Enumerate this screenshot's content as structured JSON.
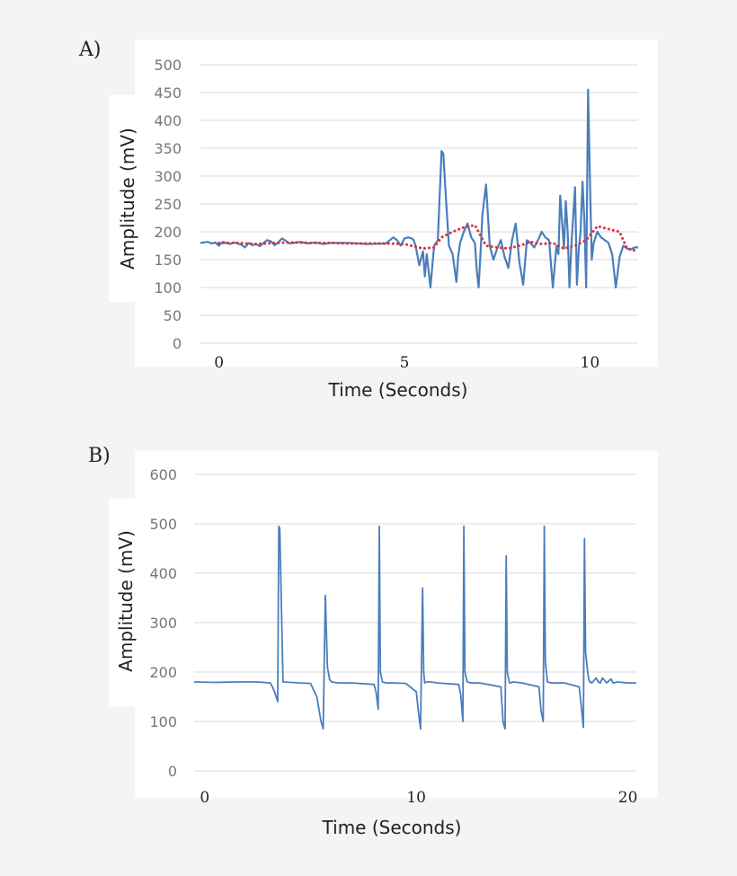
{
  "chart_data": [
    {
      "type": "line",
      "panel_label": "A)",
      "xlabel": "Time (Seconds)",
      "ylabel": "Amplitude (mV)",
      "ylim": [
        0,
        500
      ],
      "yticks": [
        0,
        50,
        100,
        150,
        200,
        250,
        300,
        350,
        400,
        450,
        500
      ],
      "xlim": [
        -0.5,
        11.3
      ],
      "xticks": [
        0,
        5,
        10
      ],
      "grid": true,
      "colors": {
        "raw": "#4a7ebb",
        "filtered": "#d9333f"
      },
      "series": [
        {
          "style": "solid",
          "x": [
            -0.5,
            -0.3,
            -0.2,
            -0.1,
            0.0,
            0.1,
            0.2,
            0.3,
            0.4,
            0.5,
            0.6,
            0.7,
            0.8,
            0.9,
            1.0,
            1.1,
            1.2,
            1.3,
            1.4,
            1.5,
            1.6,
            1.7,
            1.8,
            1.9,
            2.0,
            2.2,
            2.4,
            2.6,
            2.8,
            3.0,
            3.5,
            4.0,
            4.5,
            4.7,
            4.8,
            4.9,
            5.0,
            5.1,
            5.2,
            5.25,
            5.3,
            5.4,
            5.5,
            5.55,
            5.6,
            5.7,
            5.8,
            5.9,
            6.0,
            6.05,
            6.1,
            6.2,
            6.3,
            6.4,
            6.45,
            6.5,
            6.6,
            6.7,
            6.8,
            6.9,
            6.95,
            7.0,
            7.05,
            7.1,
            7.2,
            7.3,
            7.4,
            7.5,
            7.6,
            7.7,
            7.8,
            7.9,
            8.0,
            8.1,
            8.2,
            8.3,
            8.4,
            8.5,
            8.6,
            8.7,
            8.8,
            8.9,
            9.0,
            9.1,
            9.15,
            9.2,
            9.3,
            9.35,
            9.4,
            9.45,
            9.5,
            9.6,
            9.65,
            9.7,
            9.75,
            9.8,
            9.85,
            9.9,
            9.95,
            10.0,
            10.05,
            10.1,
            10.2,
            10.3,
            10.4,
            10.5,
            10.6,
            10.7,
            10.8,
            10.9,
            11.0,
            11.1,
            11.2,
            11.3
          ],
          "y": [
            180,
            182,
            179,
            181,
            175,
            182,
            180,
            178,
            181,
            179,
            177,
            172,
            180,
            176,
            178,
            174,
            180,
            185,
            183,
            176,
            181,
            188,
            184,
            179,
            180,
            182,
            179,
            181,
            178,
            180,
            180,
            178,
            179,
            190,
            185,
            175,
            188,
            190,
            188,
            185,
            175,
            140,
            165,
            120,
            160,
            100,
            175,
            185,
            345,
            340,
            280,
            175,
            160,
            110,
            155,
            180,
            200,
            215,
            190,
            180,
            130,
            100,
            160,
            230,
            285,
            175,
            150,
            170,
            185,
            155,
            135,
            185,
            215,
            145,
            105,
            185,
            180,
            172,
            185,
            200,
            190,
            185,
            100,
            175,
            160,
            265,
            170,
            255,
            200,
            100,
            175,
            280,
            105,
            170,
            200,
            290,
            220,
            100,
            455,
            300,
            150,
            180,
            200,
            190,
            185,
            180,
            160,
            100,
            155,
            175,
            170,
            168,
            172,
            172
          ]
        },
        {
          "style": "dotted",
          "x": [
            0,
            0.5,
            1.0,
            1.5,
            2.0,
            2.5,
            3.0,
            3.5,
            4.0,
            4.5,
            5.0,
            5.5,
            5.8,
            6.0,
            6.3,
            6.6,
            6.9,
            7.2,
            7.5,
            7.8,
            8.1,
            8.4,
            8.7,
            9.0,
            9.3,
            9.6,
            9.9,
            10.2,
            10.5,
            10.8,
            11.0,
            11.3
          ],
          "y": [
            180,
            180,
            178,
            180,
            181,
            180,
            180,
            179,
            179,
            179,
            178,
            170,
            172,
            190,
            200,
            208,
            212,
            175,
            172,
            170,
            175,
            182,
            178,
            180,
            170,
            175,
            185,
            210,
            205,
            200,
            170,
            165
          ]
        }
      ]
    },
    {
      "type": "line",
      "panel_label": "B)",
      "xlabel": "Time (Seconds)",
      "ylabel": "Amplitude (mV)",
      "ylim": [
        0,
        600
      ],
      "yticks": [
        0,
        100,
        200,
        300,
        400,
        500,
        600
      ],
      "xlim": [
        -0.5,
        20.4
      ],
      "xticks": [
        0,
        10,
        20
      ],
      "grid": true,
      "colors": {
        "raw": "#4a7ebb"
      },
      "series": [
        {
          "style": "solid",
          "x": [
            -0.5,
            0.5,
            1.5,
            2.5,
            3.1,
            3.2,
            3.3,
            3.45,
            3.5,
            3.55,
            3.7,
            4.5,
            5.0,
            5.3,
            5.5,
            5.6,
            5.7,
            5.8,
            5.9,
            6.0,
            6.3,
            7.0,
            8.0,
            8.1,
            8.2,
            8.25,
            8.3,
            8.4,
            8.6,
            9.0,
            9.5,
            10.0,
            10.1,
            10.2,
            10.3,
            10.35,
            10.4,
            10.5,
            10.7,
            11.0,
            12.0,
            12.1,
            12.2,
            12.25,
            12.3,
            12.4,
            12.6,
            13.0,
            14.0,
            14.1,
            14.2,
            14.25,
            14.3,
            14.4,
            14.6,
            15.0,
            15.8,
            15.9,
            16.0,
            16.05,
            16.1,
            16.2,
            16.4,
            17.0,
            17.7,
            17.8,
            17.9,
            17.95,
            18.0,
            18.1,
            18.15,
            18.2,
            18.3,
            18.5,
            18.6,
            18.7,
            18.8,
            19.0,
            19.2,
            19.3,
            19.5,
            20.0,
            20.4
          ],
          "y": [
            180,
            179,
            180,
            180,
            178,
            170,
            160,
            140,
            495,
            490,
            180,
            178,
            177,
            150,
            100,
            85,
            355,
            210,
            185,
            180,
            178,
            178,
            175,
            160,
            125,
            495,
            200,
            180,
            178,
            178,
            177,
            160,
            120,
            85,
            370,
            200,
            178,
            180,
            180,
            178,
            175,
            155,
            100,
            495,
            200,
            180,
            178,
            178,
            170,
            100,
            85,
            435,
            200,
            178,
            180,
            178,
            170,
            120,
            100,
            495,
            220,
            180,
            178,
            178,
            170,
            130,
            88,
            470,
            240,
            200,
            185,
            180,
            178,
            188,
            180,
            178,
            188,
            178,
            186,
            178,
            180,
            178,
            178
          ]
        }
      ]
    }
  ]
}
